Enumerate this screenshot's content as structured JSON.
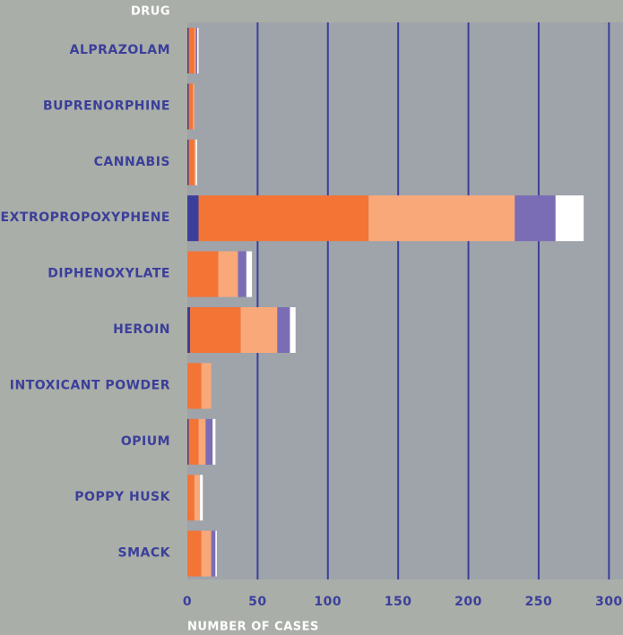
{
  "chart_data": {
    "type": "stacked-bar-horizontal",
    "title": "DRUG",
    "x_label": "NUMBER OF CASES",
    "categories": [
      "ALPRAZOLAM",
      "BUPRENORPHINE",
      "CANNABIS",
      "DEXTROPROPOXYPHENE",
      "DIPHENOXYLATE",
      "HEROIN",
      "INTOXICANT POWDER",
      "OPIUM",
      "POPPY HUSK",
      "SMACK"
    ],
    "series": [
      {
        "color": "#3b3f9a",
        "values": [
          1,
          1,
          1,
          8,
          0,
          2,
          0,
          1,
          0,
          0
        ]
      },
      {
        "color": "#f47436",
        "values": [
          4,
          3,
          4,
          121,
          22,
          36,
          10,
          7,
          5,
          10
        ]
      },
      {
        "color": "#f9a87a",
        "values": [
          1,
          1,
          1,
          104,
          14,
          26,
          7,
          5,
          4,
          7
        ]
      },
      {
        "color": "#7b6db5",
        "values": [
          1,
          0,
          0,
          29,
          6,
          9,
          0,
          5,
          0,
          3
        ]
      },
      {
        "color": "#ffffff",
        "values": [
          1,
          0,
          1,
          20,
          4,
          4,
          0,
          2,
          2,
          1
        ]
      }
    ],
    "xlim": [
      0,
      310
    ],
    "xticks": [
      0,
      50,
      100,
      150,
      200,
      250,
      300
    ],
    "grid": true,
    "grid_color": "#3b3f9a",
    "plot_background": "#9fa3aa"
  }
}
